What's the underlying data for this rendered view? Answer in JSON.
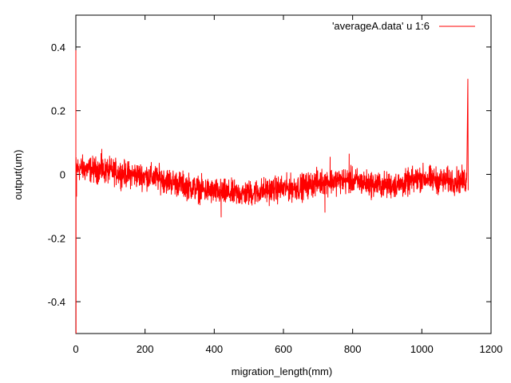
{
  "chart_data": {
    "type": "line",
    "title": "",
    "xlabel": "migration_length(mm)",
    "ylabel": "output(um)",
    "xlim": [
      0,
      1200
    ],
    "ylim": [
      -0.5,
      0.5
    ],
    "xticks": [
      0,
      200,
      400,
      600,
      800,
      1000,
      1200
    ],
    "yticks": [
      -0.4,
      -0.2,
      0,
      0.2,
      0.4
    ],
    "xtick_labels": [
      "0",
      "200",
      "400",
      "600",
      "800",
      "1000",
      "1200"
    ],
    "ytick_labels": [
      "-0.4",
      "-0.2",
      "0",
      "0.2",
      "0.4"
    ],
    "grid": false,
    "legend_position": "top-right",
    "series": [
      {
        "name": "'averageA.data' u 1:6",
        "color": "#ff0000",
        "trend": {
          "x": [
            0,
            50,
            100,
            150,
            200,
            250,
            300,
            350,
            400,
            450,
            500,
            550,
            600,
            650,
            700,
            750,
            800,
            850,
            900,
            950,
            1000,
            1050,
            1100,
            1130
          ],
          "y": [
            0.02,
            0.015,
            0.01,
            0.0,
            -0.005,
            -0.015,
            -0.03,
            -0.045,
            -0.055,
            -0.06,
            -0.06,
            -0.05,
            -0.045,
            -0.04,
            -0.025,
            -0.02,
            -0.02,
            -0.03,
            -0.035,
            -0.03,
            -0.01,
            -0.02,
            -0.02,
            -0.02
          ]
        },
        "noise_amplitude": 0.03,
        "spikes": [
          {
            "x": 0,
            "y": 0.39
          },
          {
            "x": 0.5,
            "y": -0.5
          },
          {
            "x": 2,
            "y": -0.07
          },
          {
            "x": 75,
            "y": 0.08
          },
          {
            "x": 420,
            "y": -0.135
          },
          {
            "x": 720,
            "y": -0.12
          },
          {
            "x": 735,
            "y": 0.055
          },
          {
            "x": 790,
            "y": 0.065
          },
          {
            "x": 1133,
            "y": 0.3
          },
          {
            "x": 1134,
            "y": -0.05
          }
        ]
      }
    ]
  }
}
